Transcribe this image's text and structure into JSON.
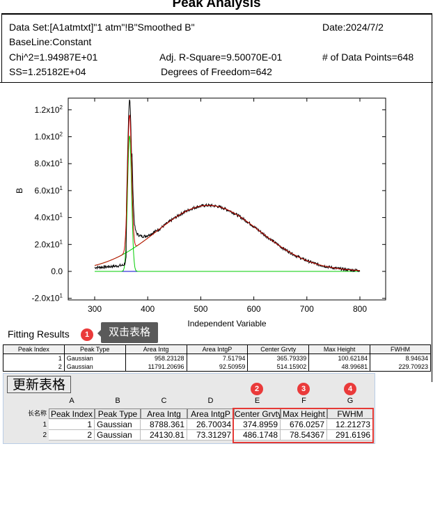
{
  "report": {
    "title": "Peak Analysis",
    "dataset": "Data Set:[A1atmtxt]\"1 atm\"!B\"Smoothed B\"",
    "date": "Date:2024/7/2",
    "baseline": "BaseLine:Constant",
    "chi2": "Chi^2=1.94987E+01",
    "adj_r2": "Adj. R-Square=9.50070E-01",
    "num_points": "# of Data Points=648",
    "ss": "SS=1.25182E+04",
    "dof": "Degrees of Freedom=642"
  },
  "chart_data": {
    "type": "line",
    "xlabel": "Independent Variable",
    "ylabel": "B",
    "xlim": [
      300,
      800
    ],
    "ylim": [
      -20,
      125
    ],
    "xticks": [
      "300",
      "400",
      "500",
      "600",
      "700",
      "800"
    ],
    "yticks": [
      {
        "value": 120,
        "label": "1.2x10",
        "exp": "2"
      },
      {
        "value": 100,
        "label": "1.0x10",
        "exp": "2"
      },
      {
        "value": 80,
        "label": "8.0x10",
        "exp": "1"
      },
      {
        "value": 60,
        "label": "6.0x10",
        "exp": "1"
      },
      {
        "value": 40,
        "label": "4.0x10",
        "exp": "1"
      },
      {
        "value": 20,
        "label": "2.0x10",
        "exp": "1"
      },
      {
        "value": 0,
        "label": "0.0",
        "exp": ""
      },
      {
        "value": -20,
        "label": "-2.0x10",
        "exp": "1"
      }
    ],
    "peaks": [
      {
        "center": 365.79,
        "height": 100.62,
        "fwhm": 8.95
      },
      {
        "center": 514.16,
        "height": 48.997,
        "fwhm": 229.71
      }
    ],
    "baseline": 0,
    "colors": {
      "data": "#000000",
      "cumulative": "#cc0000",
      "peak": "#00cc00",
      "baseline": "#0000cc"
    }
  },
  "fitting": {
    "label": "Fitting Results",
    "badge": "1",
    "tooltip": "双击表格",
    "headers": [
      "Peak Index",
      "Peak Type",
      "Area Intg",
      "Area IntgP",
      "Center Grvty",
      "Max Height",
      "FWHM"
    ],
    "rows": [
      [
        "1",
        "Gaussian",
        "958.23128",
        "7.51794",
        "365.79339",
        "100.62184",
        "8.94634"
      ],
      [
        "2",
        "Gaussian",
        "11791.20696",
        "92.50959",
        "514.15902",
        "48.99681",
        "229.70923"
      ]
    ]
  },
  "workbook": {
    "update_button": "更新表格",
    "letters": [
      "A",
      "B",
      "C",
      "D",
      "E",
      "F",
      "G"
    ],
    "longname_label": "长名称",
    "colnames": [
      "Peak Index",
      "Peak Type",
      "Area Intg",
      "Area IntgP",
      "Center Grvty",
      "Max Height",
      "FWHM"
    ],
    "row_numbers": [
      "1",
      "2"
    ],
    "rows": [
      [
        "1",
        "Gaussian",
        "8788.361",
        "26.70034",
        "374.8959",
        "676.0257",
        "12.21273"
      ],
      [
        "2",
        "Gaussian",
        "24130.81",
        "73.31297",
        "486.1748",
        "78.54367",
        "291.6196"
      ]
    ],
    "badges": [
      "2",
      "3",
      "4"
    ]
  }
}
